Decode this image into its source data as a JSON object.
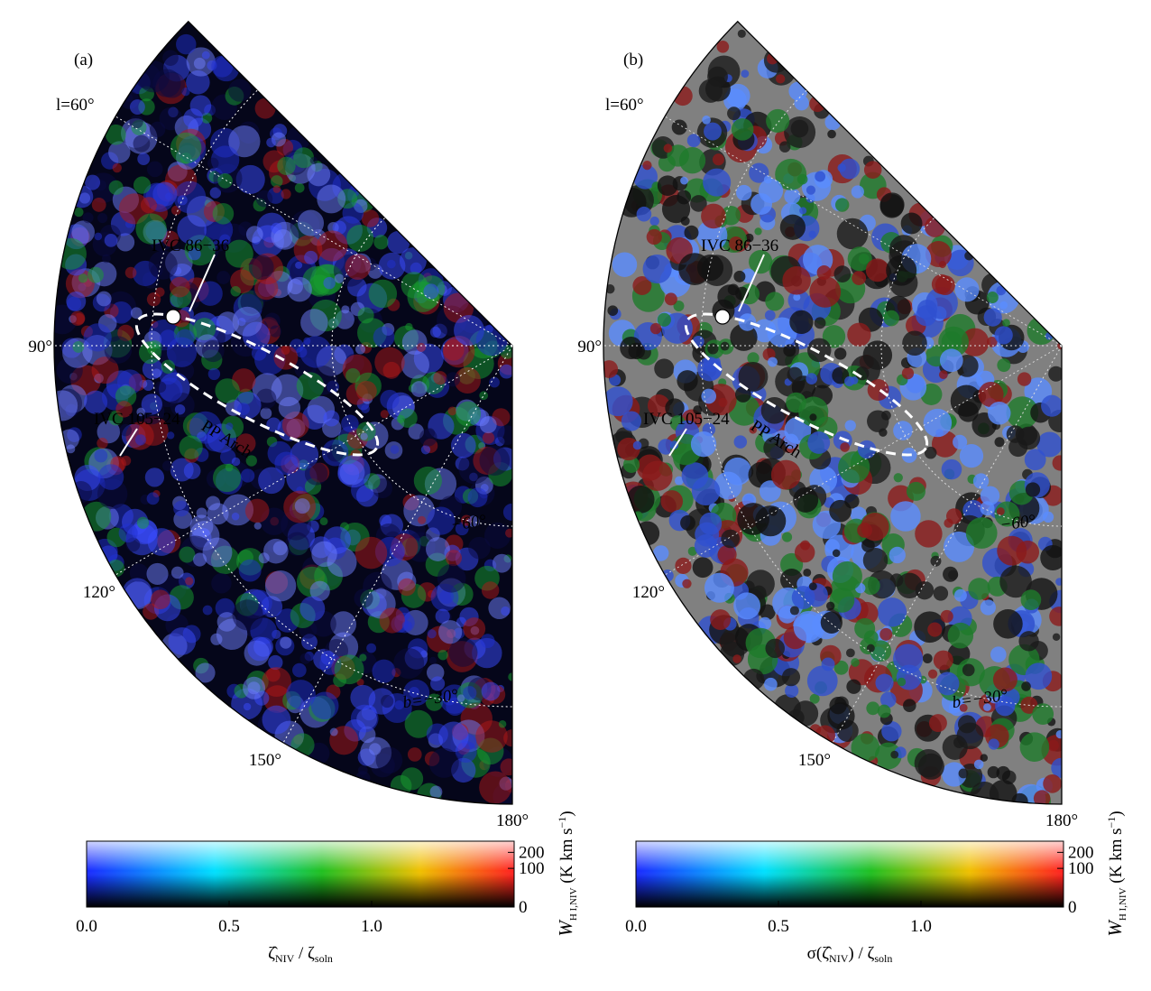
{
  "panels": [
    {
      "label": "(a)",
      "lon_labels": [
        "l=60°",
        "90°",
        "120°",
        "150°",
        "180°"
      ],
      "lat_labels": [
        "−60°",
        "b=−30°"
      ],
      "annotations": [
        "IVC 86−36",
        "IVC 105−24",
        "PP Arch"
      ],
      "colorbar": {
        "xlabel_parts": [
          "ζ̂",
          "NIV",
          " / ζ",
          "soln"
        ],
        "xlim": [
          0,
          1.5
        ],
        "xticks": [
          {
            "value": 0,
            "label": "0.0"
          },
          {
            "value": 0.5,
            "label": "0.5"
          },
          {
            "value": 1,
            "label": "1.0"
          }
        ],
        "ylim": [
          0,
          290
        ],
        "yscale": "sqrt",
        "yticks": [
          0,
          100,
          200
        ],
        "ylabel_parts": [
          "W",
          "H I,NIV",
          " (K km s",
          "−1",
          ")"
        ]
      }
    },
    {
      "label": "(b)",
      "lon_labels": [
        "l=60°",
        "90°",
        "120°",
        "150°",
        "180°"
      ],
      "lat_labels": [
        "−60°",
        "b=−30°"
      ],
      "annotations": [
        "IVC 86−36",
        "IVC 105−24",
        "PP Arch"
      ],
      "colorbar": {
        "xlabel_parts": [
          "σ(ζ̂",
          "NIV",
          ") / ζ",
          "soln"
        ],
        "xlim": [
          0,
          1.5
        ],
        "xticks": [
          {
            "value": 0,
            "label": "0.0"
          },
          {
            "value": 0.5,
            "label": "0.5"
          },
          {
            "value": 1,
            "label": "1.0"
          }
        ],
        "ylim": [
          0,
          290
        ],
        "yscale": "sqrt",
        "yticks": [
          0,
          100,
          200
        ],
        "ylabel_parts": [
          "W",
          "H I,NIV",
          " (K km s",
          "−1",
          ")"
        ]
      }
    }
  ]
}
